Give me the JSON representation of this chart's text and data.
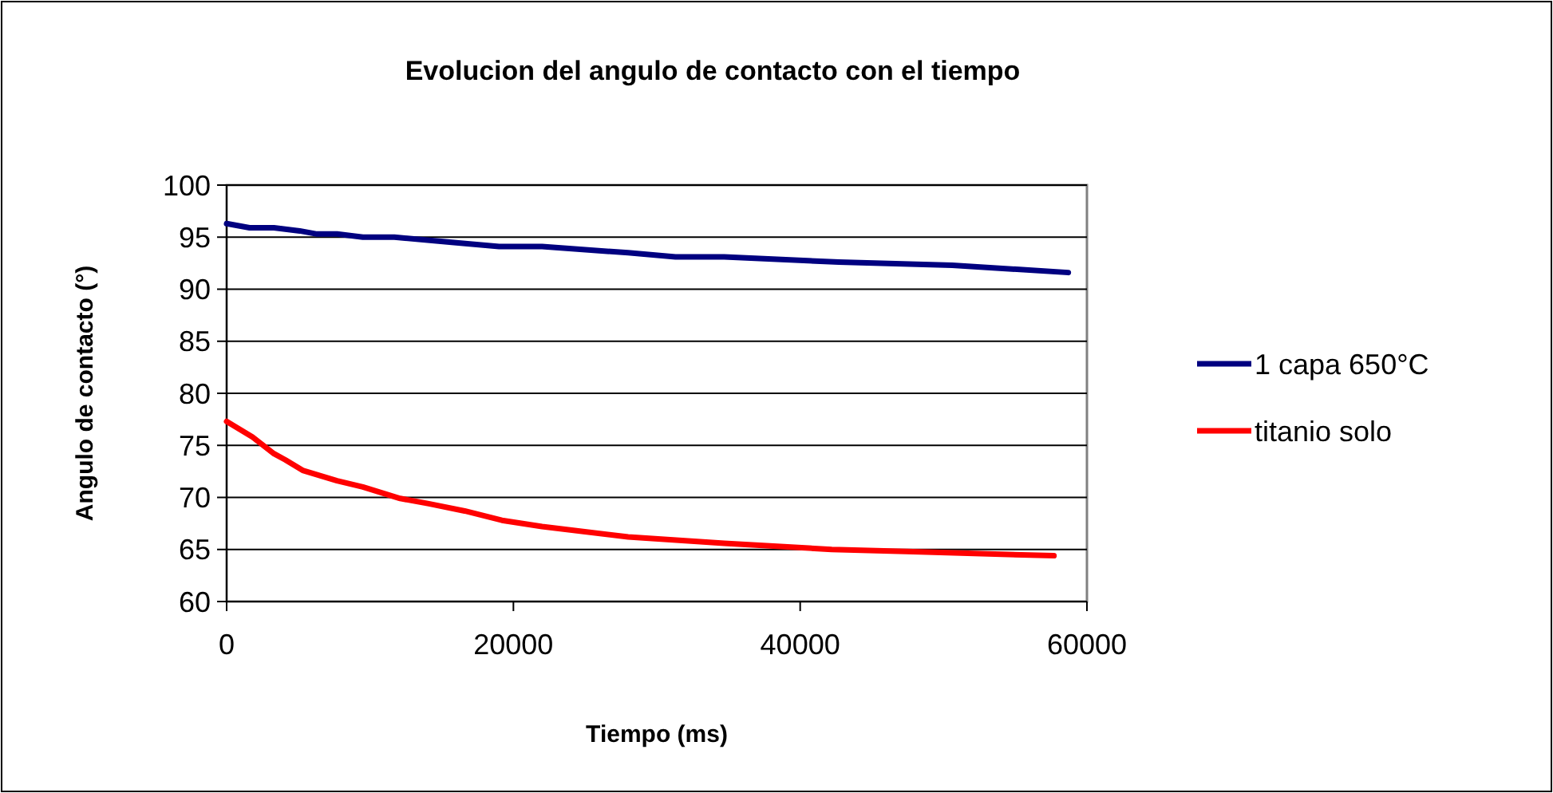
{
  "chart_data": {
    "type": "line",
    "title": "Evolucion del angulo de contacto con el tiempo",
    "xlabel": "Tiempo (ms)",
    "ylabel": "Angulo de contacto (°)",
    "xlim": [
      0,
      60000
    ],
    "xticks": [
      0,
      20000,
      40000,
      60000
    ],
    "ylim": [
      60,
      100
    ],
    "yticks": [
      60,
      65,
      70,
      75,
      80,
      85,
      90,
      95,
      100
    ],
    "grid": "y",
    "legend": "right",
    "marker": "none",
    "line_style": "solid",
    "series": [
      {
        "name": "1 capa 650°C",
        "color": "#000080",
        "x": [
          0,
          1600,
          3300,
          5100,
          6300,
          7700,
          9500,
          11700,
          15700,
          19000,
          22000,
          28000,
          31300,
          34700,
          42700,
          50600,
          58700
        ],
        "values": [
          96.3,
          95.9,
          95.9,
          95.6,
          95.3,
          95.3,
          95.0,
          95.0,
          94.5,
          94.1,
          94.1,
          93.5,
          93.1,
          93.1,
          92.6,
          92.3,
          91.6
        ]
      },
      {
        "name": "titanio solo",
        "color": "#ff0000",
        "x": [
          0,
          1800,
          3300,
          4100,
          5300,
          6500,
          7700,
          9500,
          12100,
          14100,
          16600,
          19200,
          22000,
          28000,
          34700,
          42200,
          47400,
          57700
        ],
        "values": [
          77.3,
          75.8,
          74.2,
          73.6,
          72.6,
          72.1,
          71.6,
          71.0,
          69.9,
          69.4,
          68.7,
          67.8,
          67.2,
          66.2,
          65.6,
          65.0,
          64.8,
          64.4
        ]
      }
    ]
  }
}
